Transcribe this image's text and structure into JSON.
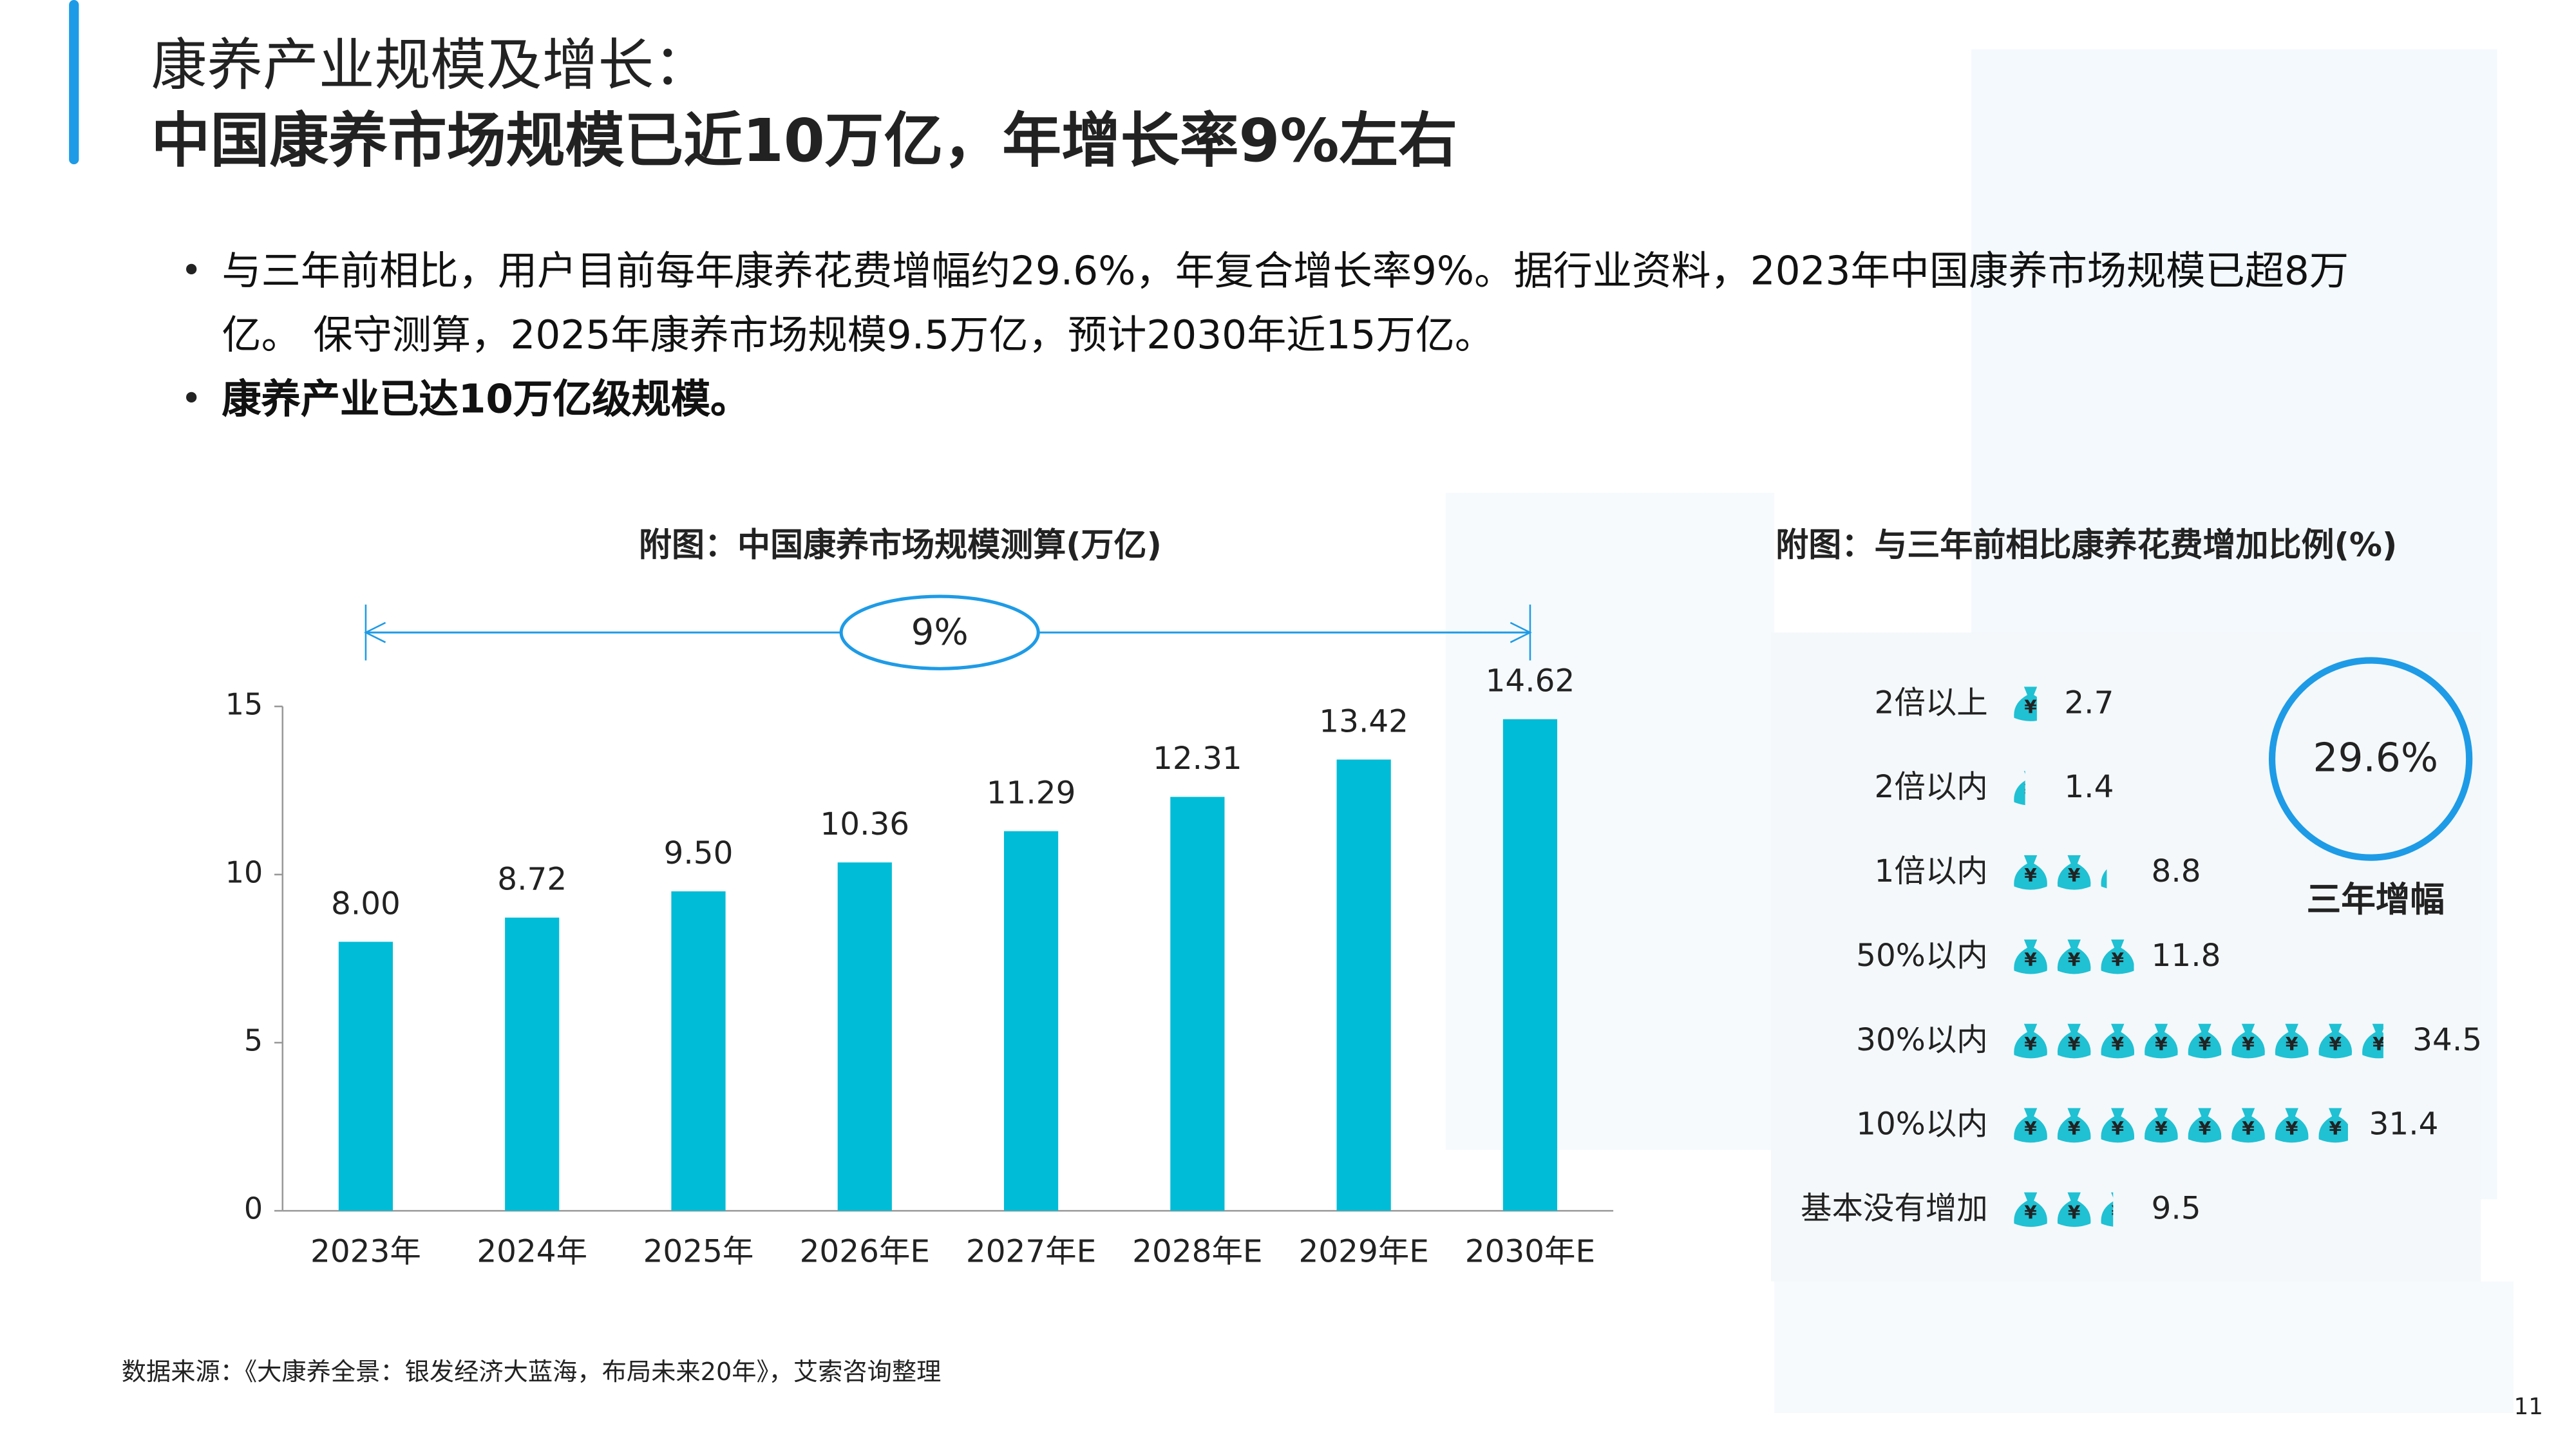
{
  "header": {
    "title": "康养产业规模及增长：",
    "subtitle": "中国康养市场规模已近10万亿，年增长率9%左右"
  },
  "bullets": [
    "与三年前相比，用户目前每年康养花费增幅约29.6%，年复合增长率9%。据行业资料，2023年中国康养市场规模已超8万亿。 保守测算，2025年康养市场规模9.5万亿，预计2030年近15万亿。",
    "康养产业已达10万亿级规模。"
  ],
  "chart_data": [
    {
      "type": "bar",
      "title": "附图：中国康养市场规模测算(万亿)",
      "categories": [
        "2023年",
        "2024年",
        "2025年",
        "2026年E",
        "2027年E",
        "2028年E",
        "2029年E",
        "2030年E"
      ],
      "values": [
        8.0,
        8.72,
        9.5,
        10.36,
        11.29,
        12.31,
        13.42,
        14.62
      ],
      "value_labels": [
        "8.00",
        "8.72",
        "9.50",
        "10.36",
        "11.29",
        "12.31",
        "13.42",
        "14.62"
      ],
      "color": "#00bcd6",
      "ylim": [
        0,
        15
      ],
      "yticks": [
        0,
        5,
        10,
        15
      ],
      "annotation": "9%"
    },
    {
      "type": "pictograph",
      "title": "附图：与三年前相比康养花费增加比例(%)",
      "categories": [
        "2倍以上",
        "2倍以内",
        "1倍以内",
        "50%以内",
        "30%以内",
        "10%以内",
        "基本没有增加"
      ],
      "values": [
        2.7,
        1.4,
        8.8,
        11.8,
        34.5,
        31.4,
        9.5
      ],
      "color": "#1fc1d3",
      "annotation": "29.6%",
      "annotation_label": "三年增幅"
    }
  ],
  "source": "数据来源：《大康养全景：银发经济大蓝海，布局未来20年》，艾索咨询整理",
  "page_number": "11"
}
